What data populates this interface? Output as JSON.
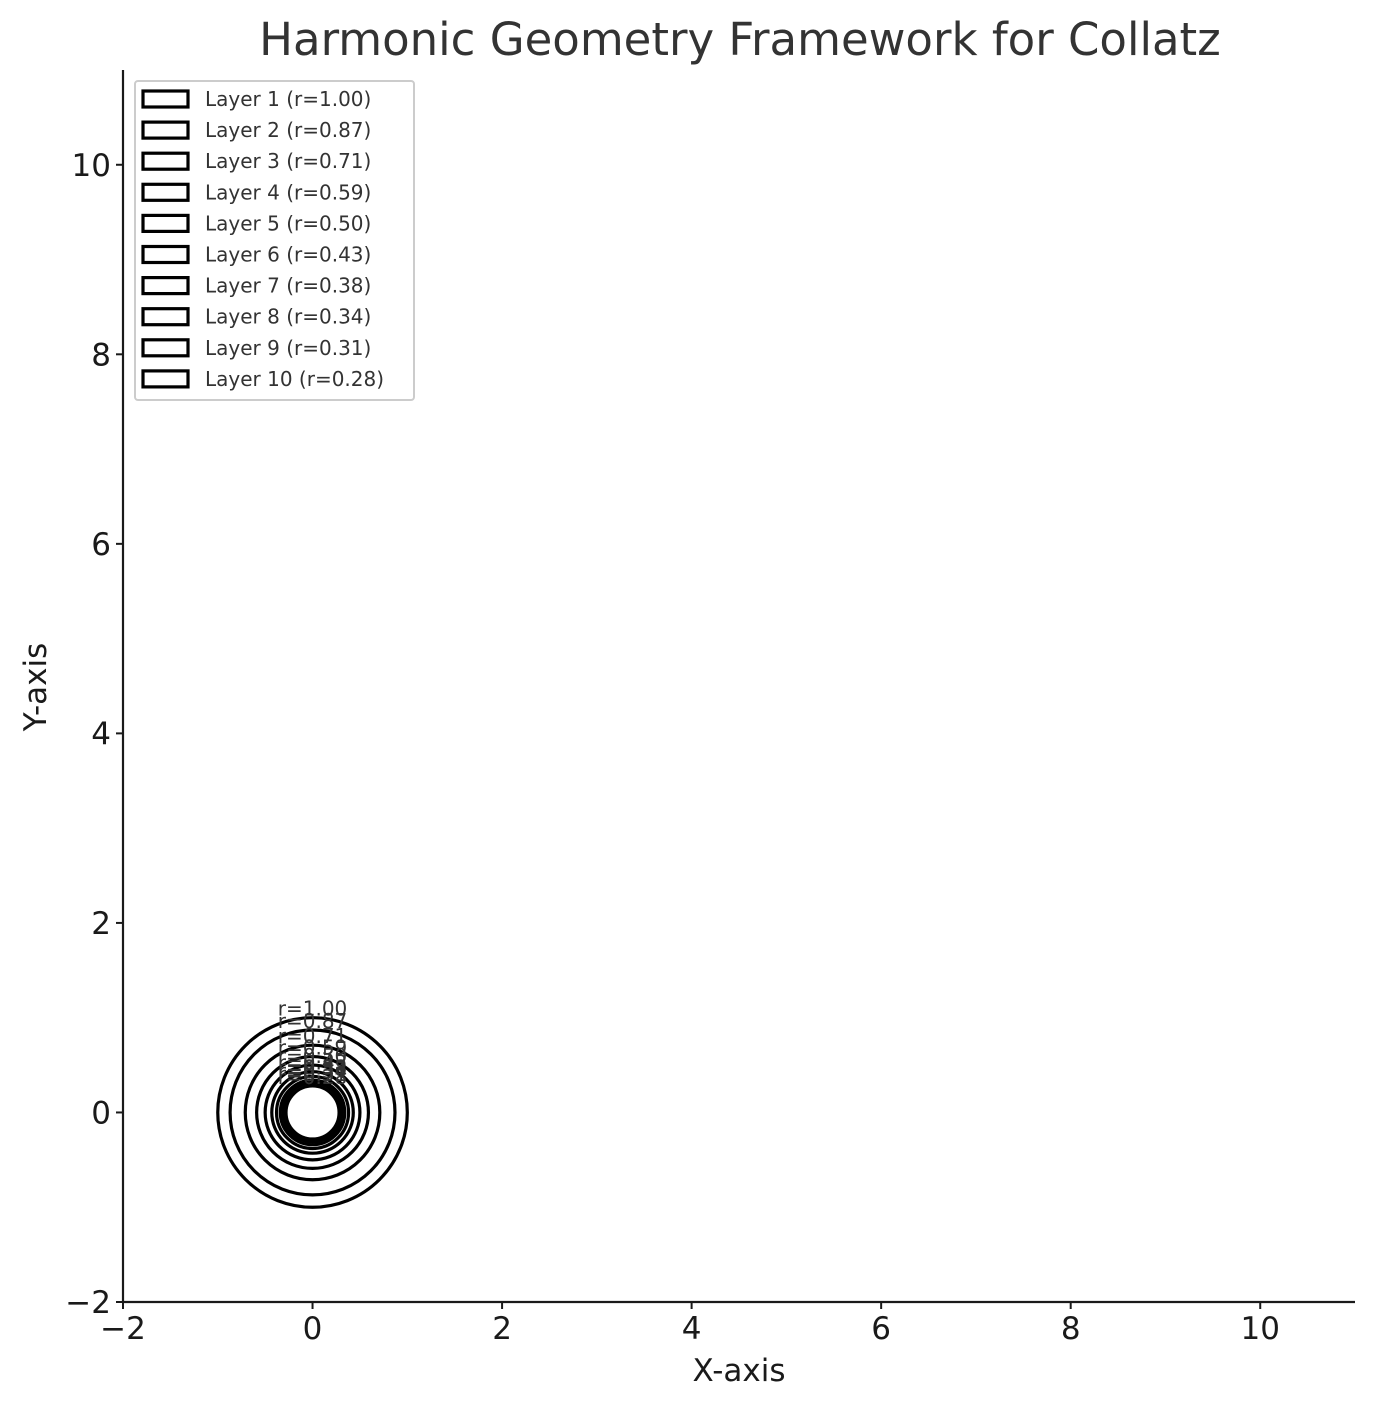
{
  "chart_data": {
    "type": "scatter",
    "title": "Harmonic Geometry Framework for Collatz",
    "xlabel": "X-axis",
    "ylabel": "Y-axis",
    "xlim": [
      -2,
      11
    ],
    "ylim": [
      -2,
      11
    ],
    "xticks": [
      -2,
      0,
      2,
      4,
      6,
      8,
      10
    ],
    "yticks": [
      -2,
      0,
      2,
      4,
      6,
      8,
      10
    ],
    "xtick_labels": [
      "−2",
      "0",
      "2",
      "4",
      "6",
      "8",
      "10"
    ],
    "ytick_labels": [
      "−2",
      "0",
      "2",
      "4",
      "6",
      "8",
      "10"
    ],
    "grid": false,
    "legend_position": "top-left",
    "line_color": "#000000",
    "center": [
      0,
      0
    ],
    "series": [
      {
        "name": "Layer 1 (r=1.00)",
        "radius": 1.0,
        "label": "r=1.00"
      },
      {
        "name": "Layer 2 (r=0.87)",
        "radius": 0.87,
        "label": "r=0.87"
      },
      {
        "name": "Layer 3 (r=0.71)",
        "radius": 0.71,
        "label": "r=0.71"
      },
      {
        "name": "Layer 4 (r=0.59)",
        "radius": 0.59,
        "label": "r=0.59"
      },
      {
        "name": "Layer 5 (r=0.50)",
        "radius": 0.5,
        "label": "r=0.50"
      },
      {
        "name": "Layer 6 (r=0.43)",
        "radius": 0.43,
        "label": "r=0.43"
      },
      {
        "name": "Layer 7 (r=0.38)",
        "radius": 0.38,
        "label": "r=0.38"
      },
      {
        "name": "Layer 8 (r=0.34)",
        "radius": 0.34,
        "label": "r=0.34"
      },
      {
        "name": "Layer 9 (r=0.31)",
        "radius": 0.31,
        "label": "r=0.31"
      },
      {
        "name": "Layer 10 (r=0.28)",
        "radius": 0.28,
        "label": "r=0.28"
      }
    ]
  }
}
